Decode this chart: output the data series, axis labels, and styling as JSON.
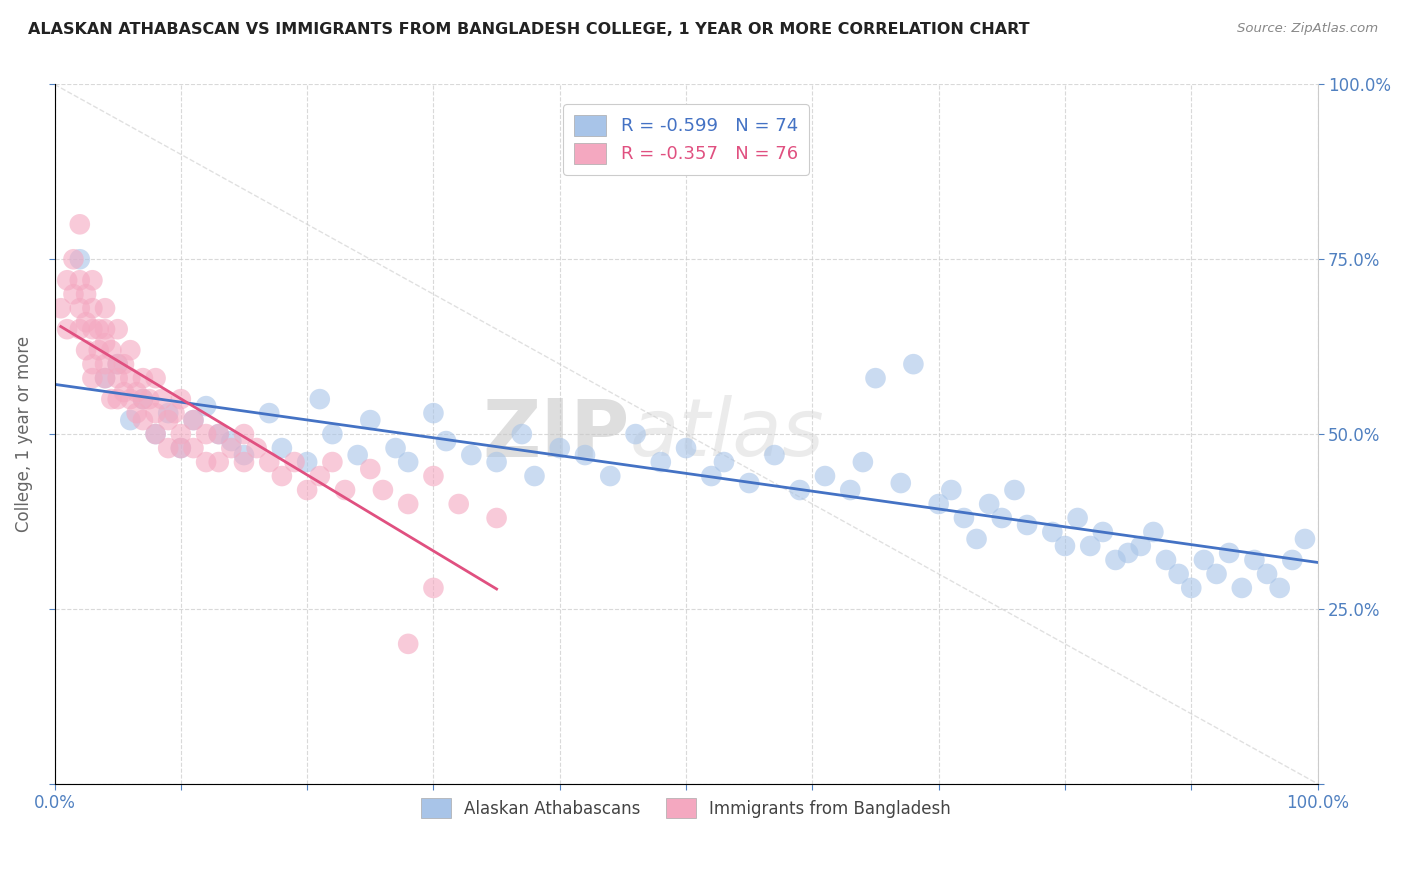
{
  "title": "ALASKAN ATHABASCAN VS IMMIGRANTS FROM BANGLADESH COLLEGE, 1 YEAR OR MORE CORRELATION CHART",
  "source": "Source: ZipAtlas.com",
  "ylabel": "College, 1 year or more",
  "xlim": [
    0.0,
    1.0
  ],
  "ylim": [
    0.0,
    1.0
  ],
  "xticks": [
    0.0,
    0.1,
    0.2,
    0.3,
    0.4,
    0.5,
    0.6,
    0.7,
    0.8,
    0.9,
    1.0
  ],
  "yticks": [
    0.0,
    0.25,
    0.5,
    0.75,
    1.0
  ],
  "blue_color": "#a8c4e8",
  "pink_color": "#f4a8c0",
  "blue_line_color": "#4472c4",
  "pink_line_color": "#e05080",
  "grid_color": "#d0d0d0",
  "watermark_zip": "ZIP",
  "watermark_atlas": "atlas",
  "blue_R": -0.599,
  "blue_N": 74,
  "pink_R": -0.357,
  "pink_N": 76,
  "blue_x": [
    0.02,
    0.04,
    0.05,
    0.06,
    0.07,
    0.08,
    0.09,
    0.1,
    0.11,
    0.12,
    0.13,
    0.14,
    0.15,
    0.17,
    0.18,
    0.2,
    0.21,
    0.22,
    0.24,
    0.25,
    0.27,
    0.28,
    0.3,
    0.31,
    0.33,
    0.35,
    0.37,
    0.38,
    0.4,
    0.42,
    0.44,
    0.46,
    0.48,
    0.5,
    0.52,
    0.53,
    0.55,
    0.57,
    0.59,
    0.61,
    0.63,
    0.64,
    0.65,
    0.67,
    0.68,
    0.7,
    0.71,
    0.72,
    0.73,
    0.74,
    0.75,
    0.76,
    0.77,
    0.79,
    0.8,
    0.81,
    0.82,
    0.83,
    0.84,
    0.85,
    0.86,
    0.87,
    0.88,
    0.89,
    0.9,
    0.91,
    0.92,
    0.93,
    0.94,
    0.95,
    0.96,
    0.97,
    0.98,
    0.99
  ],
  "blue_y": [
    0.75,
    0.58,
    0.6,
    0.52,
    0.55,
    0.5,
    0.53,
    0.48,
    0.52,
    0.54,
    0.5,
    0.49,
    0.47,
    0.53,
    0.48,
    0.46,
    0.55,
    0.5,
    0.47,
    0.52,
    0.48,
    0.46,
    0.53,
    0.49,
    0.47,
    0.46,
    0.5,
    0.44,
    0.48,
    0.47,
    0.44,
    0.5,
    0.46,
    0.48,
    0.44,
    0.46,
    0.43,
    0.47,
    0.42,
    0.44,
    0.42,
    0.46,
    0.58,
    0.43,
    0.6,
    0.4,
    0.42,
    0.38,
    0.35,
    0.4,
    0.38,
    0.42,
    0.37,
    0.36,
    0.34,
    0.38,
    0.34,
    0.36,
    0.32,
    0.33,
    0.34,
    0.36,
    0.32,
    0.3,
    0.28,
    0.32,
    0.3,
    0.33,
    0.28,
    0.32,
    0.3,
    0.28,
    0.32,
    0.35
  ],
  "pink_x": [
    0.005,
    0.01,
    0.01,
    0.015,
    0.015,
    0.02,
    0.02,
    0.02,
    0.02,
    0.025,
    0.025,
    0.025,
    0.03,
    0.03,
    0.03,
    0.03,
    0.03,
    0.035,
    0.035,
    0.04,
    0.04,
    0.04,
    0.04,
    0.04,
    0.045,
    0.045,
    0.05,
    0.05,
    0.05,
    0.05,
    0.055,
    0.055,
    0.06,
    0.06,
    0.06,
    0.065,
    0.065,
    0.07,
    0.07,
    0.07,
    0.075,
    0.08,
    0.08,
    0.08,
    0.085,
    0.09,
    0.09,
    0.095,
    0.1,
    0.1,
    0.1,
    0.11,
    0.11,
    0.12,
    0.12,
    0.13,
    0.13,
    0.14,
    0.15,
    0.15,
    0.16,
    0.17,
    0.18,
    0.19,
    0.2,
    0.21,
    0.22,
    0.23,
    0.25,
    0.26,
    0.28,
    0.3,
    0.32,
    0.35,
    0.28,
    0.3
  ],
  "pink_y": [
    0.68,
    0.72,
    0.65,
    0.7,
    0.75,
    0.68,
    0.72,
    0.65,
    0.8,
    0.7,
    0.66,
    0.62,
    0.68,
    0.65,
    0.72,
    0.6,
    0.58,
    0.65,
    0.62,
    0.68,
    0.63,
    0.58,
    0.65,
    0.6,
    0.62,
    0.55,
    0.6,
    0.65,
    0.58,
    0.55,
    0.6,
    0.56,
    0.58,
    0.55,
    0.62,
    0.56,
    0.53,
    0.55,
    0.58,
    0.52,
    0.55,
    0.53,
    0.58,
    0.5,
    0.55,
    0.52,
    0.48,
    0.53,
    0.5,
    0.55,
    0.48,
    0.52,
    0.48,
    0.5,
    0.46,
    0.5,
    0.46,
    0.48,
    0.5,
    0.46,
    0.48,
    0.46,
    0.44,
    0.46,
    0.42,
    0.44,
    0.46,
    0.42,
    0.45,
    0.42,
    0.4,
    0.44,
    0.4,
    0.38,
    0.2,
    0.28
  ]
}
